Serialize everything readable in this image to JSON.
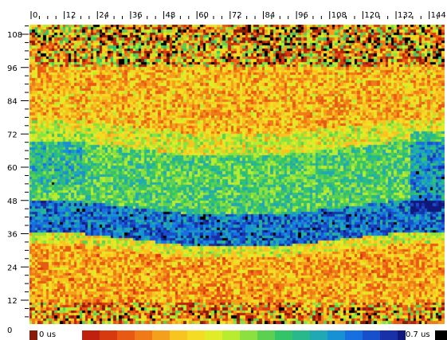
{
  "viewer": {
    "x_ticks": [
      "0",
      "12",
      "24",
      "36",
      "48",
      "60",
      "72",
      "84",
      "96",
      "108",
      "120",
      "132",
      "144"
    ],
    "y_ticks": [
      "108",
      "96",
      "84",
      "72",
      "60",
      "48",
      "36",
      "24",
      "12",
      "0"
    ],
    "scale_min_label": "0 us",
    "scale_max_label": "0.7 us"
  },
  "colors": {
    "scale": [
      "#8b1a0a",
      "#c0200e",
      "#d83a10",
      "#e85a14",
      "#f07a18",
      "#f4a01c",
      "#f8c420",
      "#f4dc24",
      "#e0ec28",
      "#b8ec30",
      "#8ce040",
      "#5cd050",
      "#34c468",
      "#28b88c",
      "#20a8b4",
      "#1890d4",
      "#1870e0",
      "#1850cc",
      "#1830a8",
      "#10187c",
      "#000000"
    ],
    "background": "#ffffff"
  },
  "chart_data": {
    "type": "heatmap",
    "x_range": [
      0,
      147
    ],
    "y_range": [
      0,
      111
    ],
    "x_tick_labels": [
      "0",
      "12",
      "24",
      "36",
      "48",
      "60",
      "72",
      "84",
      "96",
      "108",
      "120",
      "132",
      "144"
    ],
    "y_tick_labels": [
      "0",
      "12",
      "24",
      "36",
      "48",
      "60",
      "72",
      "84",
      "96",
      "108"
    ],
    "colorbar": {
      "min_label": "0 us",
      "max_label": "0.7 us",
      "min": 0,
      "max": 0.7,
      "unit": "us"
    },
    "bands": [
      {
        "y_from": 0,
        "y_to": 28,
        "value": 0.2
      },
      {
        "y_from": 28,
        "y_to": 32,
        "value": 0.3
      },
      {
        "y_from": 32,
        "y_to": 44,
        "value": 0.58
      },
      {
        "y_from": 44,
        "y_to": 66,
        "value": 0.42
      },
      {
        "y_from": 66,
        "y_to": 74,
        "value": 0.3
      },
      {
        "y_from": 74,
        "y_to": 111,
        "value": 0.22
      }
    ]
  }
}
